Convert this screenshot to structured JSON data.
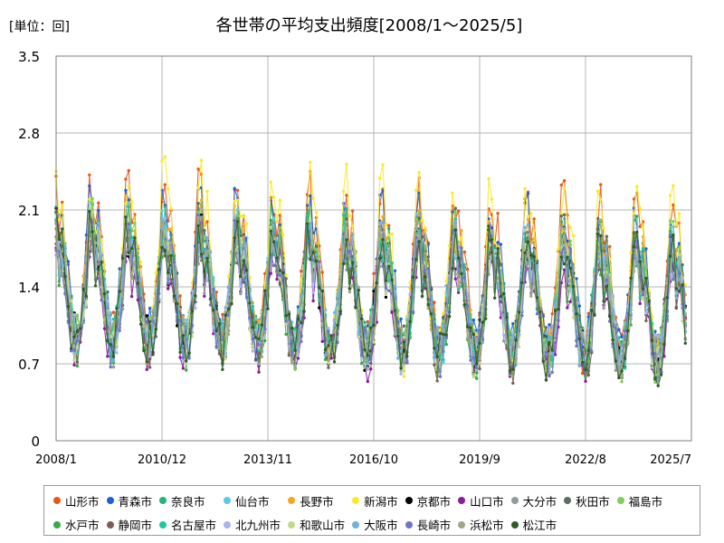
{
  "chart_data": {
    "type": "line",
    "title": "各世帯の平均支出頻度[2008/1～2025/5]",
    "unit_label": "[単位：回]",
    "xlabel": "",
    "ylabel": "",
    "ylim": [
      0,
      3.5
    ],
    "y_ticks": [
      "0",
      "0.7",
      "1.4",
      "2.1",
      "2.8",
      "3.5"
    ],
    "x_ticks": [
      "2008/1",
      "2010/12",
      "2013/11",
      "2016/10",
      "2019/9",
      "2022/8",
      "2025/7"
    ],
    "x_range": [
      "2008/1",
      "2025/7"
    ],
    "grid": true,
    "legend_position": "bottom",
    "series": [
      {
        "name": "山形市",
        "color": "#e8581c",
        "base": 1.6,
        "amp": 0.62,
        "phase": 0.1
      },
      {
        "name": "青森市",
        "color": "#1f5fd6",
        "base": 1.55,
        "amp": 0.55,
        "phase": 0.25
      },
      {
        "name": "奈良市",
        "color": "#22b57a",
        "base": 1.45,
        "amp": 0.5,
        "phase": 0.4
      },
      {
        "name": "仙台市",
        "color": "#5bc8e8",
        "base": 1.42,
        "amp": 0.48,
        "phase": 0.55
      },
      {
        "name": "長野市",
        "color": "#f5a623",
        "base": 1.45,
        "amp": 0.52,
        "phase": 0.7
      },
      {
        "name": "新潟市",
        "color": "#f7ea2a",
        "base": 1.6,
        "amp": 0.7,
        "phase": 0.85
      },
      {
        "name": "京都市",
        "color": "#000000",
        "base": 1.38,
        "amp": 0.45,
        "phase": 1.0
      },
      {
        "name": "山口市",
        "color": "#8b1a9e",
        "base": 1.3,
        "amp": 0.45,
        "phase": 1.15
      },
      {
        "name": "大分市",
        "color": "#8f9a9e",
        "base": 1.35,
        "amp": 0.45,
        "phase": 1.3
      },
      {
        "name": "秋田市",
        "color": "#5a6e62",
        "base": 1.45,
        "amp": 0.5,
        "phase": 1.45
      },
      {
        "name": "福島市",
        "color": "#7dcf5a",
        "base": 1.42,
        "amp": 0.5,
        "phase": 1.6
      },
      {
        "name": "水戸市",
        "color": "#39a845",
        "base": 1.35,
        "amp": 0.48,
        "phase": 1.75
      },
      {
        "name": "静岡市",
        "color": "#7a5f54",
        "base": 1.35,
        "amp": 0.48,
        "phase": 1.9
      },
      {
        "name": "名古屋市",
        "color": "#23c79a",
        "base": 1.4,
        "amp": 0.48,
        "phase": 2.05
      },
      {
        "name": "北九州市",
        "color": "#a9b4ec",
        "base": 1.38,
        "amp": 0.46,
        "phase": 2.2
      },
      {
        "name": "和歌山市",
        "color": "#c3d98a",
        "base": 1.36,
        "amp": 0.46,
        "phase": 2.35
      },
      {
        "name": "大阪市",
        "color": "#6fb3dc",
        "base": 1.4,
        "amp": 0.48,
        "phase": 2.5
      },
      {
        "name": "長崎市",
        "color": "#6f72c9",
        "base": 1.35,
        "amp": 0.47,
        "phase": 2.65
      },
      {
        "name": "浜松市",
        "color": "#a3a488",
        "base": 1.38,
        "amp": 0.47,
        "phase": 2.8
      },
      {
        "name": "松江市",
        "color": "#2e5e24",
        "base": 1.36,
        "amp": 0.47,
        "phase": 2.95
      }
    ]
  }
}
